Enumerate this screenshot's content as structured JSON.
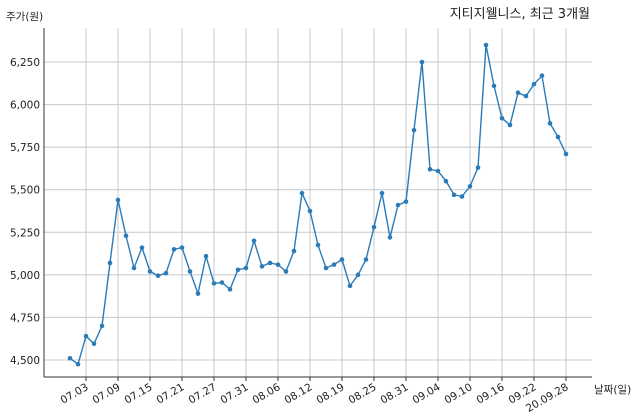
{
  "chart_data": {
    "type": "line",
    "title": "지티지웰니스, 최근 3개월",
    "ylabel": "주가(원)",
    "xlabel": "날짜(일)",
    "ylim": [
      4400,
      6450
    ],
    "yticks": [
      4500,
      4750,
      5000,
      5250,
      5500,
      5750,
      6000,
      6250
    ],
    "ytick_labels": [
      "4,500",
      "4,750",
      "5,000",
      "5,250",
      "5,500",
      "5,750",
      "6,000",
      "6,250"
    ],
    "xtick_labels": [
      "07.03",
      "07.09",
      "07.15",
      "07.21",
      "07.27",
      "07.31",
      "08.06",
      "08.12",
      "08.19",
      "08.25",
      "08.31",
      "09.04",
      "09.10",
      "09.16",
      "09.22",
      "20.09.28"
    ],
    "xtick_index": [
      2,
      6,
      10,
      14,
      18,
      22,
      26,
      30,
      34,
      38,
      42,
      46,
      50,
      54,
      58,
      62
    ],
    "grid": true,
    "series": [
      {
        "color": "#2b7bb9",
        "values": [
          4510,
          4475,
          4640,
          4595,
          4700,
          5070,
          5440,
          5230,
          5040,
          5160,
          5020,
          4995,
          5010,
          5150,
          5160,
          5020,
          4890,
          5110,
          4950,
          4955,
          4915,
          5030,
          5040,
          5200,
          5050,
          5070,
          5060,
          5020,
          5140,
          5480,
          5375,
          5175,
          5040,
          5060,
          5090,
          4935,
          5000,
          5090,
          5280,
          5480,
          5220,
          5410,
          5430,
          5850,
          6250,
          5620,
          5610,
          5550,
          5470,
          5460,
          5520,
          5630,
          6350,
          6110,
          5920,
          5880,
          6070,
          6050,
          6120,
          6170,
          5890,
          5810,
          5710
        ]
      }
    ]
  }
}
